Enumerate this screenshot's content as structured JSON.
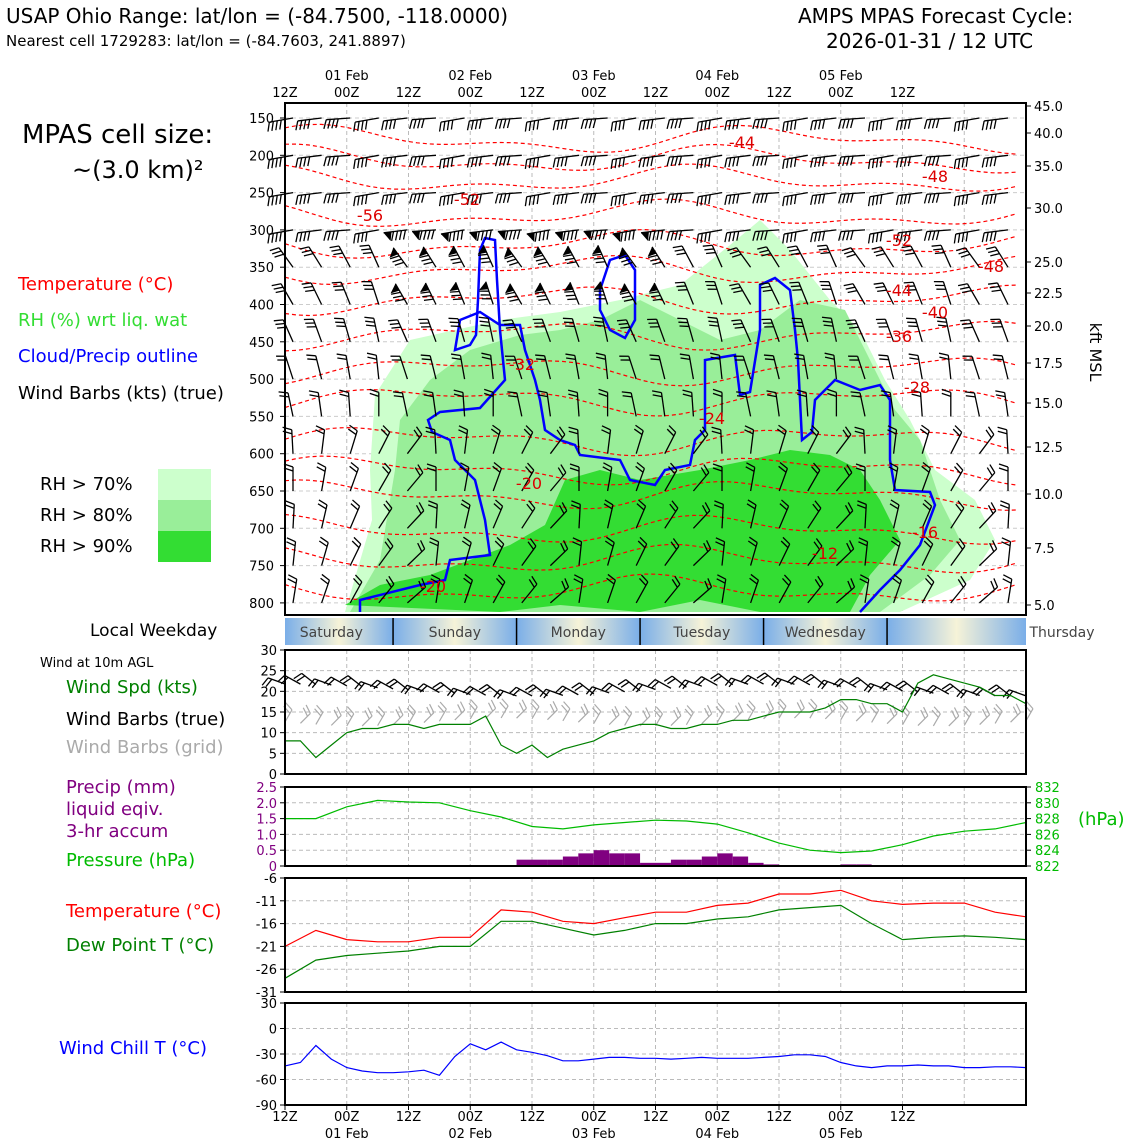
{
  "header": {
    "left_line1": "USAP Ohio Range: lat/lon = (-84.7500, -118.0000)",
    "left_line2": "Nearest cell 1729283: lat/lon = (-84.7603, 241.8897)",
    "right_line1": "AMPS MPAS Forecast Cycle:",
    "right_line2": "2026-01-31 / 12 UTC"
  },
  "cell_size": {
    "line1": "MPAS cell size:",
    "line2": "~(3.0 km)²"
  },
  "legend_main": {
    "temperature": "Temperature (°C)",
    "rh": "RH (%) wrt liq. wat",
    "cloud": "Cloud/Precip outline",
    "wind": "Wind Barbs (kts) (true)",
    "rh70": "RH > 70%",
    "rh80": "RH > 80%",
    "rh90": "RH > 90%"
  },
  "colors": {
    "temperature": "#ff0000",
    "rh_label": "#33dd33",
    "cloud": "#0000ff",
    "rh70": "#ccffcc",
    "rh80": "#99ee99",
    "rh90": "#33dd33",
    "wind_spd": "#008000",
    "wind_grid": "#aaaaaa",
    "precip": "#800080",
    "pressure": "#00bb00",
    "dewpoint": "#008000",
    "windchill": "#0000ff"
  },
  "time_axis": {
    "top_labels": [
      "12Z",
      "00Z",
      "12Z",
      "00Z",
      "12Z",
      "00Z",
      "12Z",
      "00Z",
      "12Z",
      "00Z",
      "12Z"
    ],
    "date_labels": [
      "01 Feb",
      "02 Feb",
      "03 Feb",
      "04 Feb",
      "05 Feb"
    ],
    "bottom_labels": [
      "12Z",
      "00Z",
      "12Z",
      "00Z",
      "12Z",
      "00Z",
      "12Z",
      "00Z",
      "12Z",
      "00Z",
      "12Z"
    ]
  },
  "cross_section": {
    "pressure_ticks": [
      "150",
      "200",
      "250",
      "300",
      "350",
      "400",
      "450",
      "500",
      "550",
      "600",
      "650",
      "700",
      "750",
      "800"
    ],
    "height_ticks": [
      "45.0",
      "40.0",
      "35.0",
      "30.0",
      "25.0",
      "22.5",
      "20.0",
      "17.5",
      "15.0",
      "12.5",
      "10.0",
      "7.5",
      "5.0"
    ],
    "height_axis_label": "kft MSL",
    "temperature_labels": [
      "-44",
      "-48",
      "-52",
      "-56",
      "-52",
      "-48",
      "-44",
      "-40",
      "-36",
      "-32",
      "-28",
      "-24",
      "-20",
      "-16",
      "-12",
      "-20"
    ]
  },
  "weekday": {
    "label": "Local Weekday",
    "days": [
      "Saturday",
      "Sunday",
      "Monday",
      "Tuesday",
      "Wednesday",
      "Thursday"
    ]
  },
  "wind_panel": {
    "title": "Wind at 10m AGL",
    "spd_label": "Wind Spd (kts)",
    "barbs_true": "Wind Barbs (true)",
    "barbs_grid": "Wind Barbs (grid)",
    "y_ticks": [
      "30",
      "25",
      "20",
      "15",
      "10",
      "5",
      "0"
    ]
  },
  "precip_panel": {
    "precip_label1": "Precip (mm)",
    "precip_label2": "liquid eqiv.",
    "precip_label3": "3-hr accum",
    "pressure_label": "Pressure (hPa)",
    "pressure_unit": "(hPa)",
    "left_ticks": [
      "2.5",
      "2.0",
      "1.5",
      "1.0",
      "0.5",
      "0"
    ],
    "right_ticks": [
      "832",
      "830",
      "828",
      "826",
      "824",
      "822"
    ]
  },
  "temp_panel": {
    "temp_label": "Temperature (°C)",
    "dew_label": "Dew Point T (°C)",
    "y_ticks": [
      "-6",
      "-11",
      "-16",
      "-21",
      "-26",
      "-31"
    ]
  },
  "chill_panel": {
    "label": "Wind Chill T (°C)",
    "y_ticks": [
      "30",
      "0",
      "-30",
      "-60",
      "-90"
    ]
  },
  "chart_data": [
    {
      "type": "line",
      "name": "wind_speed_10m",
      "x_hours_from_start": [
        0,
        3,
        6,
        9,
        12,
        15,
        18,
        21,
        24,
        27,
        30,
        33,
        36,
        39,
        42,
        45,
        48,
        51,
        54,
        57,
        60,
        63,
        66,
        69,
        72,
        75,
        78,
        81,
        84,
        87,
        90,
        93,
        96,
        99,
        102,
        105,
        108,
        111,
        114,
        117,
        120,
        123,
        126,
        129,
        132,
        135,
        138,
        141,
        144
      ],
      "values": [
        8,
        8,
        4,
        7,
        10,
        11,
        11,
        12,
        12,
        11,
        12,
        12,
        12,
        14,
        7,
        5,
        7,
        4,
        6,
        7,
        8,
        10,
        11,
        12,
        12,
        11,
        11,
        12,
        12,
        13,
        13,
        14,
        15,
        15,
        15,
        16,
        18,
        18,
        17,
        17,
        15,
        22,
        24,
        23,
        22,
        21,
        19,
        19,
        17
      ],
      "ylim": [
        0,
        30
      ]
    },
    {
      "type": "line",
      "name": "pressure",
      "x_hours_from_start": [
        0,
        6,
        12,
        18,
        24,
        30,
        36,
        42,
        48,
        54,
        60,
        66,
        72,
        78,
        84,
        90,
        96,
        102,
        108,
        114,
        120,
        126,
        132,
        138,
        144
      ],
      "values": [
        828,
        828,
        829.5,
        830.3,
        830.1,
        830,
        829,
        828.2,
        827,
        826.7,
        827.2,
        827.5,
        827.8,
        827.7,
        827.3,
        826.2,
        824.9,
        824,
        823.7,
        823.9,
        824.7,
        825.8,
        826.4,
        826.7,
        827.5
      ],
      "ylim": [
        822,
        832
      ]
    },
    {
      "type": "bar",
      "name": "precip_3hr",
      "x_hours_from_start": [
        45,
        48,
        51,
        54,
        57,
        60,
        63,
        66,
        69,
        72,
        75,
        78,
        81,
        84,
        87,
        90,
        93,
        108,
        111
      ],
      "values": [
        0.2,
        0.2,
        0.2,
        0.3,
        0.4,
        0.5,
        0.4,
        0.4,
        0.1,
        0.1,
        0.2,
        0.2,
        0.3,
        0.4,
        0.3,
        0.1,
        0.05,
        0.05,
        0.05
      ],
      "ylim": [
        0,
        2.5
      ]
    },
    {
      "type": "line",
      "name": "temperature_2m",
      "x_hours_from_start": [
        0,
        6,
        12,
        18,
        24,
        30,
        36,
        42,
        48,
        54,
        60,
        66,
        72,
        78,
        84,
        90,
        96,
        102,
        108,
        114,
        120,
        126,
        132,
        138,
        144
      ],
      "values": [
        -21,
        -17.5,
        -19.5,
        -20,
        -20,
        -19,
        -19,
        -13,
        -13.5,
        -15.5,
        -16,
        -14.7,
        -13.5,
        -13.5,
        -12,
        -11.5,
        -9.5,
        -9.5,
        -8.7,
        -11,
        -11.8,
        -11.5,
        -11.5,
        -13.5,
        -14.5
      ],
      "ylim": [
        -31,
        -6
      ]
    },
    {
      "type": "line",
      "name": "dew_point_2m",
      "x_hours_from_start": [
        0,
        6,
        12,
        18,
        24,
        30,
        36,
        42,
        48,
        54,
        60,
        66,
        72,
        78,
        84,
        90,
        96,
        102,
        108,
        114,
        120,
        126,
        132,
        138,
        144
      ],
      "values": [
        -28,
        -24,
        -23,
        -22.5,
        -22,
        -21,
        -21,
        -15.5,
        -15.5,
        -17,
        -18.5,
        -17.5,
        -16,
        -16,
        -15,
        -14.5,
        -13,
        -12.5,
        -12,
        -16,
        -19.5,
        -19,
        -18.7,
        -19,
        -19.5
      ],
      "ylim": [
        -31,
        -6
      ]
    },
    {
      "type": "line",
      "name": "wind_chill",
      "x_hours_from_start": [
        0,
        3,
        6,
        9,
        12,
        15,
        18,
        21,
        24,
        27,
        30,
        33,
        36,
        39,
        42,
        45,
        48,
        51,
        54,
        57,
        60,
        63,
        66,
        69,
        72,
        75,
        78,
        81,
        84,
        87,
        90,
        93,
        96,
        99,
        102,
        105,
        108,
        111,
        114,
        117,
        120,
        123,
        126,
        129,
        132,
        135,
        138,
        141,
        144
      ],
      "values": [
        -44,
        -40,
        -20,
        -36,
        -46,
        -50,
        -52,
        -52,
        -51,
        -49,
        -55,
        -33,
        -18,
        -25,
        -16,
        -25,
        -28,
        -32,
        -38,
        -38,
        -36,
        -34,
        -34,
        -35,
        -35,
        -36,
        -35,
        -34,
        -35,
        -35,
        -35,
        -34,
        -33,
        -31,
        -31,
        -33,
        -40,
        -44,
        -46,
        -44,
        -44,
        -43,
        -44,
        -44,
        -46,
        -46,
        -45,
        -45,
        -46
      ],
      "ylim": [
        -90,
        30
      ]
    }
  ]
}
